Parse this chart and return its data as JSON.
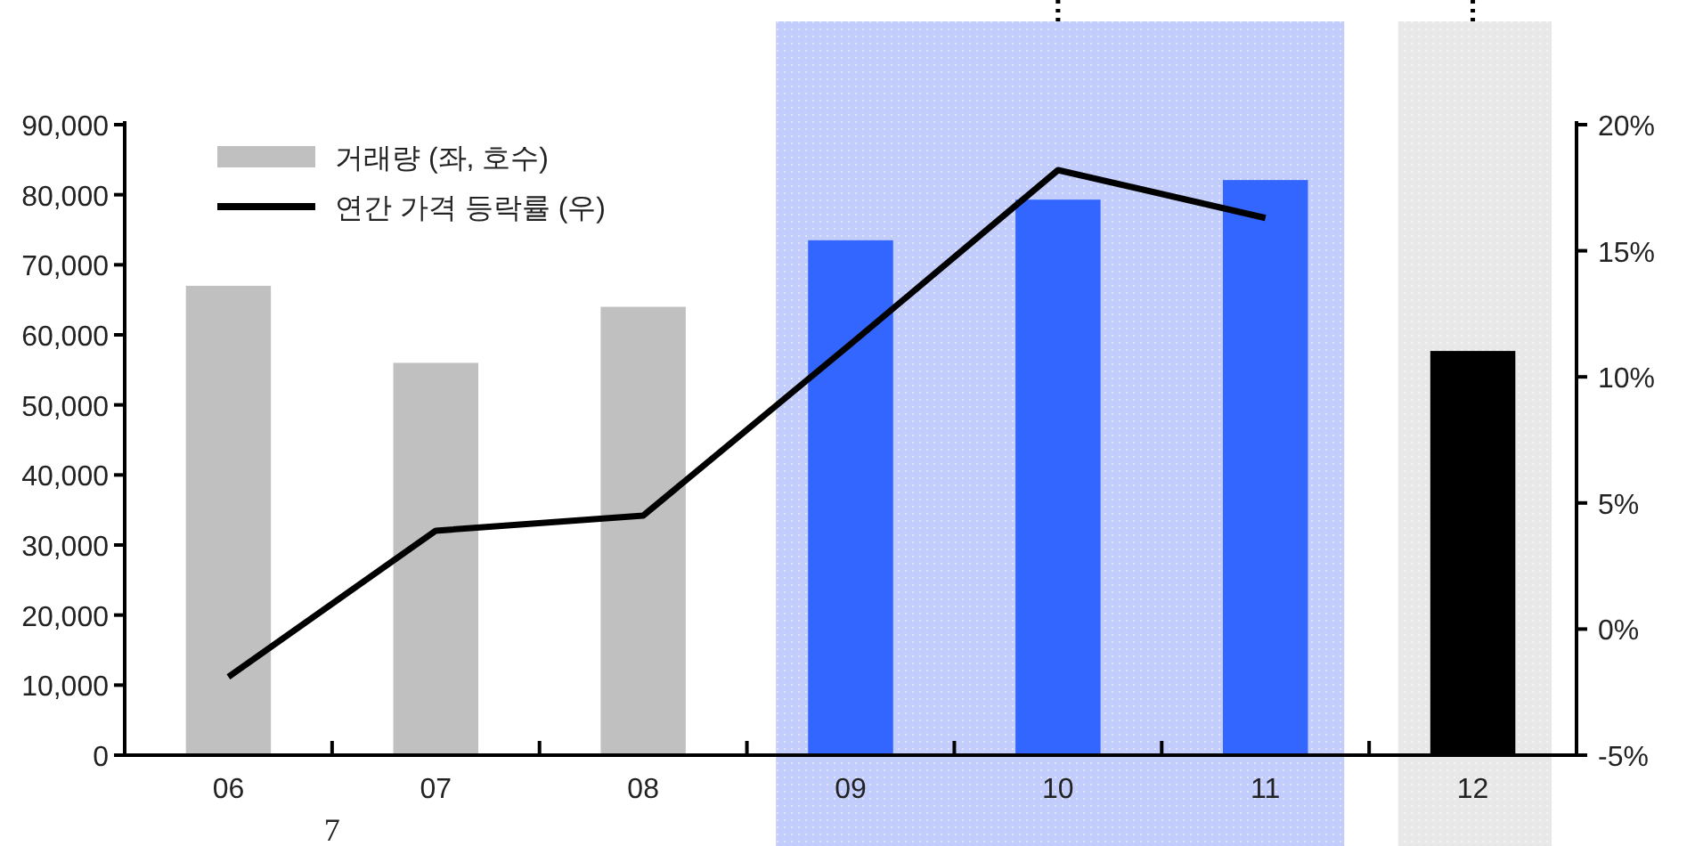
{
  "chart_data": {
    "type": "bar",
    "categories": [
      "06",
      "07",
      "08",
      "09",
      "10",
      "11",
      "12"
    ],
    "series": [
      {
        "name": "거래량 (좌, 호수)",
        "color": "#c0c0c0",
        "colors": [
          "#c0c0c0",
          "#c0c0c0",
          "#c0c0c0",
          "#3366ff",
          "#3366ff",
          "#3366ff",
          "#000000"
        ],
        "values": [
          67000,
          56000,
          64000,
          73500,
          79300,
          82100,
          57700
        ]
      },
      {
        "name": "연간 가격 등락률 (우)",
        "type": "line",
        "axis": "y2",
        "color": "#000000",
        "values": [
          -1.9,
          3.9,
          4.5,
          11.3,
          18.2,
          16.3,
          null
        ]
      }
    ],
    "ylim": [
      0,
      90000
    ],
    "yticks": [
      {
        "value": 0,
        "label": "0"
      },
      {
        "value": 10000,
        "label": "10,000"
      },
      {
        "value": 20000,
        "label": "20,000"
      },
      {
        "value": 30000,
        "label": "30,000"
      },
      {
        "value": 40000,
        "label": "40,000"
      },
      {
        "value": 50000,
        "label": "50,000"
      },
      {
        "value": 60000,
        "label": "60,000"
      },
      {
        "value": 70000,
        "label": "70,000"
      },
      {
        "value": 80000,
        "label": "80,000"
      },
      {
        "value": 90000,
        "label": "90,000"
      }
    ],
    "y2lim": [
      -5,
      20
    ],
    "y2ticks": [
      {
        "value": -5,
        "label": "-5%"
      },
      {
        "value": 0,
        "label": "0%"
      },
      {
        "value": 5,
        "label": "5%"
      },
      {
        "value": 10,
        "label": "10%"
      },
      {
        "value": 15,
        "label": "15%"
      },
      {
        "value": 20,
        "label": "20%"
      }
    ],
    "bands": [
      {
        "axis": "x",
        "from": "09",
        "to": "11",
        "color": "#c3cdfb"
      },
      {
        "axis": "x",
        "from": "12",
        "to": "12",
        "color": "#e8e8e8"
      }
    ],
    "annotations": [
      "7"
    ],
    "legend": "top left",
    "grid": false,
    "line_style": "solid",
    "marker": "none"
  }
}
